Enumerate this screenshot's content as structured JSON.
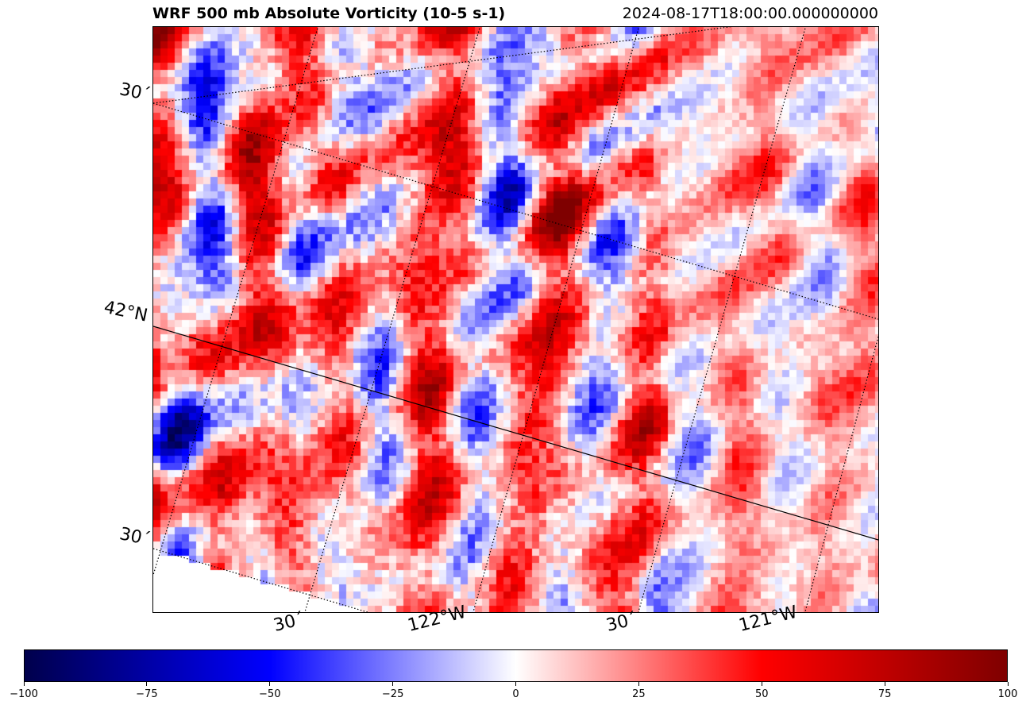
{
  "header": {
    "title": "WRF 500 mb Absolute Vorticity (10-5 s-1)",
    "timestamp": "2024-08-17T18:00:00.000000000"
  },
  "map": {
    "lat_labels": [
      "30´",
      "42°N",
      "30´"
    ],
    "lon_labels": [
      "30´",
      "122°W",
      "30´",
      "121°W"
    ],
    "colormap": "bwr",
    "colors": {
      "low": "#00004c",
      "mid_low": "#0000ff",
      "center": "#ffffff",
      "mid_high": "#ff0000",
      "high": "#7f0000"
    }
  },
  "colorbar": {
    "min": -100,
    "max": 100,
    "ticks": [
      "−100",
      "−75",
      "−50",
      "−25",
      "0",
      "25",
      "50",
      "75",
      "100"
    ]
  }
}
